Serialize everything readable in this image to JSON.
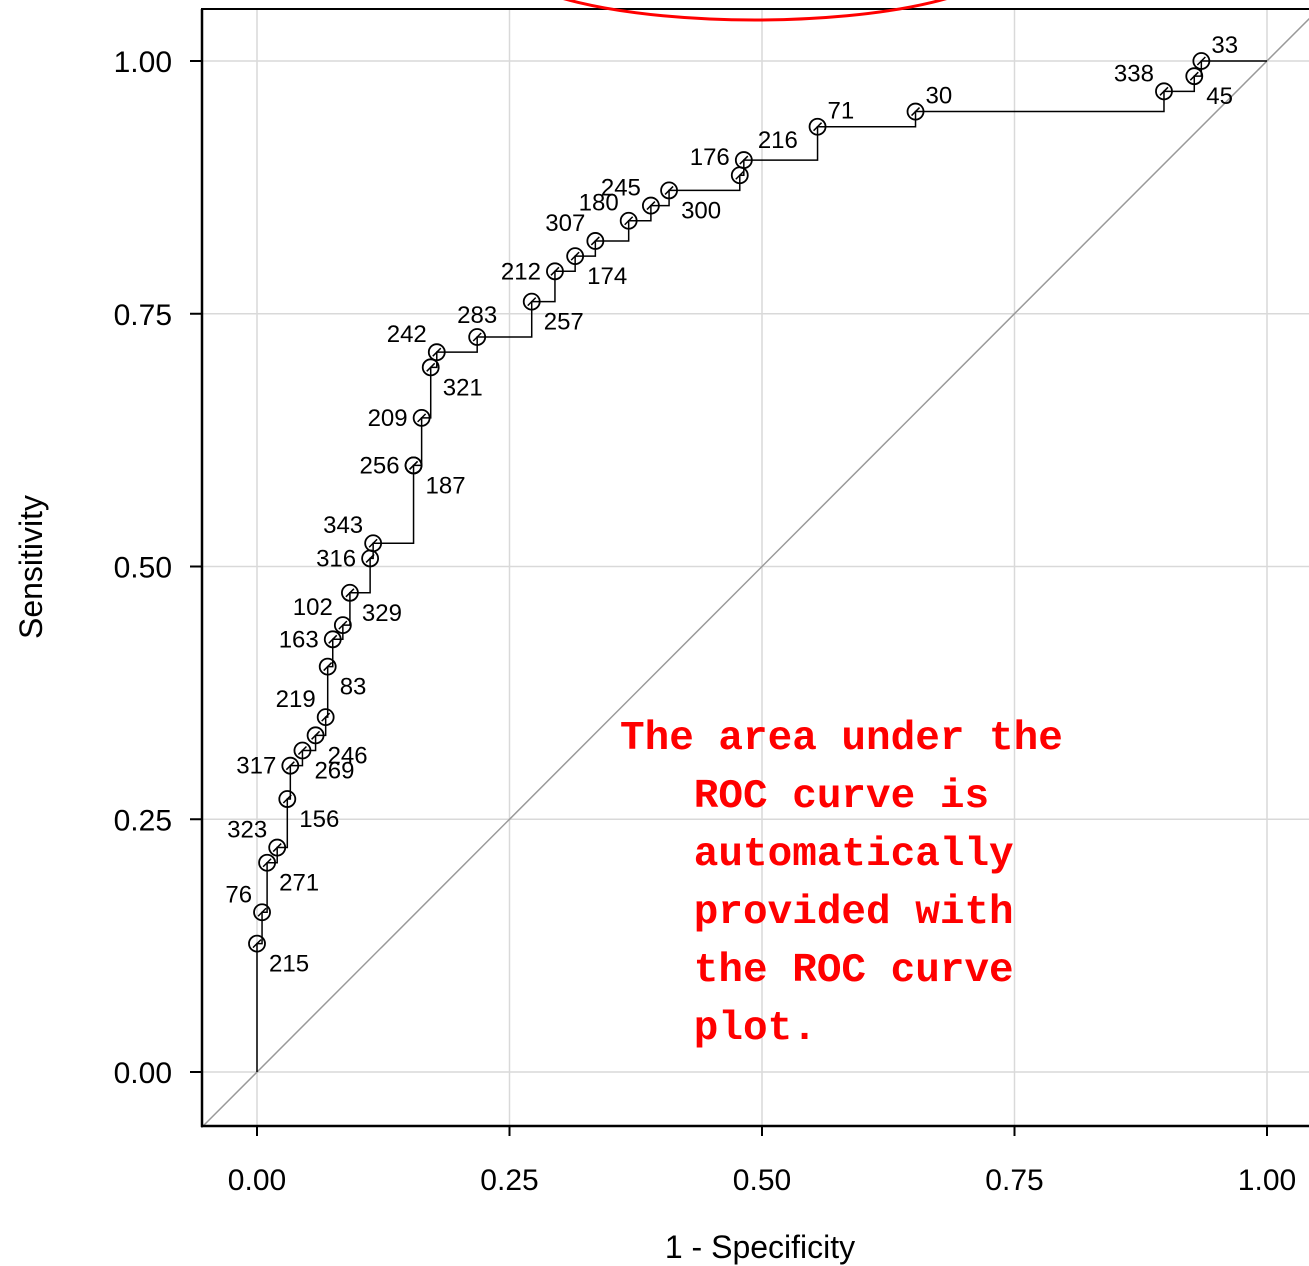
{
  "chart_data": {
    "type": "line",
    "xlabel": "1 - Specificity",
    "ylabel": "Sensitivity",
    "xlim": [
      0.0,
      1.0
    ],
    "ylim": [
      0.0,
      1.0
    ],
    "grid": true,
    "x_ticks": [
      "0.00",
      "0.25",
      "0.50",
      "0.75",
      "1.00"
    ],
    "y_ticks": [
      "0.00",
      "0.25",
      "0.50",
      "0.75",
      "1.00"
    ],
    "reference_line": {
      "from": [
        0,
        0
      ],
      "to": [
        1,
        1
      ],
      "color": "#999999"
    },
    "curve_color": "#000000",
    "point_labels": [
      {
        "label": "215",
        "x": 0.0,
        "y": 0.127,
        "pos": "below-right"
      },
      {
        "label": "76",
        "x": 0.005,
        "y": 0.158,
        "pos": "above-left"
      },
      {
        "label": "271",
        "x": 0.01,
        "y": 0.207,
        "pos": "below-right"
      },
      {
        "label": "323",
        "x": 0.02,
        "y": 0.222,
        "pos": "above-left"
      },
      {
        "label": "156",
        "x": 0.03,
        "y": 0.27,
        "pos": "below-right"
      },
      {
        "label": "317",
        "x": 0.033,
        "y": 0.303,
        "pos": "left"
      },
      {
        "label": "269",
        "x": 0.045,
        "y": 0.318,
        "pos": "below-right"
      },
      {
        "label": "246",
        "x": 0.058,
        "y": 0.333,
        "pos": "below-right"
      },
      {
        "label": "219",
        "x": 0.068,
        "y": 0.351,
        "pos": "above-left"
      },
      {
        "label": "83",
        "x": 0.07,
        "y": 0.401,
        "pos": "below-right"
      },
      {
        "label": "163",
        "x": 0.075,
        "y": 0.428,
        "pos": "left"
      },
      {
        "label": "102",
        "x": 0.085,
        "y": 0.442,
        "pos": "above-left"
      },
      {
        "label": "329",
        "x": 0.092,
        "y": 0.474,
        "pos": "below-right"
      },
      {
        "label": "316",
        "x": 0.112,
        "y": 0.508,
        "pos": "left"
      },
      {
        "label": "343",
        "x": 0.115,
        "y": 0.523,
        "pos": "above-left"
      },
      {
        "label": "187",
        "x": 0.155,
        "y": 0.6,
        "pos": "below-right"
      },
      {
        "label": "256",
        "x": 0.155,
        "y": 0.6,
        "pos": "left"
      },
      {
        "label": "209",
        "x": 0.163,
        "y": 0.647,
        "pos": "left"
      },
      {
        "label": "321",
        "x": 0.172,
        "y": 0.697,
        "pos": "below-right"
      },
      {
        "label": "242",
        "x": 0.178,
        "y": 0.712,
        "pos": "above-left"
      },
      {
        "label": "283",
        "x": 0.218,
        "y": 0.727,
        "pos": "above"
      },
      {
        "label": "257",
        "x": 0.272,
        "y": 0.762,
        "pos": "below-right"
      },
      {
        "label": "212",
        "x": 0.295,
        "y": 0.792,
        "pos": "left"
      },
      {
        "label": "174",
        "x": 0.315,
        "y": 0.807,
        "pos": "below-right"
      },
      {
        "label": "307",
        "x": 0.335,
        "y": 0.822,
        "pos": "above-left"
      },
      {
        "label": "300",
        "x": 0.408,
        "y": 0.872,
        "pos": "below-right"
      },
      {
        "label": "180",
        "x": 0.368,
        "y": 0.842,
        "pos": "above-left"
      },
      {
        "label": "245",
        "x": 0.39,
        "y": 0.857,
        "pos": "above-left"
      },
      {
        "label": "176",
        "x": 0.478,
        "y": 0.887,
        "pos": "above-left"
      },
      {
        "label": "216",
        "x": 0.482,
        "y": 0.902,
        "pos": "right"
      },
      {
        "label": "71",
        "x": 0.555,
        "y": 0.935,
        "pos": "above-right"
      },
      {
        "label": "30",
        "x": 0.652,
        "y": 0.95,
        "pos": "above-right"
      },
      {
        "label": "338",
        "x": 0.898,
        "y": 0.97,
        "pos": "above-left"
      },
      {
        "label": "45",
        "x": 0.928,
        "y": 0.985,
        "pos": "below-right"
      },
      {
        "label": "33",
        "x": 0.935,
        "y": 1.0,
        "pos": "above-right"
      }
    ],
    "annotation": "The area under the\n   ROC curve is\n   automatically\n   provided with\n   the ROC curve\n   plot."
  }
}
